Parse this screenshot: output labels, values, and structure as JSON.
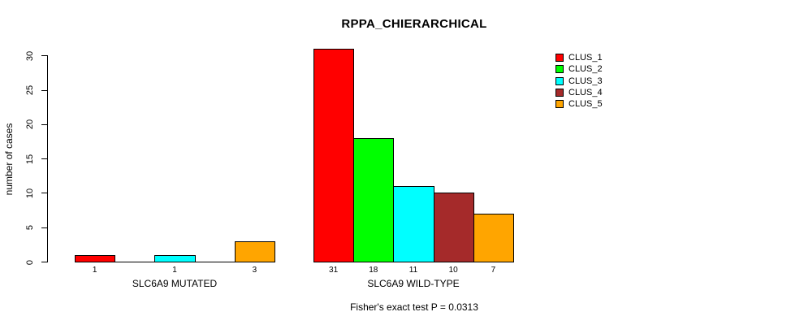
{
  "title": "RPPA_CHIERARCHICAL",
  "footer": "Fisher's exact test P = 0.0313",
  "chart_data": {
    "type": "bar",
    "title": "RPPA_CHIERARCHICAL",
    "xlabel": "",
    "ylabel": "number of cases",
    "ylim": [
      0,
      31
    ],
    "yticks": [
      0,
      5,
      10,
      15,
      20,
      25,
      30
    ],
    "grid": false,
    "legend_position": "top-right",
    "categories": [
      "SLC6A9 MUTATED",
      "SLC6A9 WILD-TYPE"
    ],
    "series": [
      {
        "name": "CLUS_1",
        "color": "#FF0000",
        "values": [
          1,
          31
        ]
      },
      {
        "name": "CLUS_2",
        "color": "#00FF00",
        "values": [
          0,
          18
        ]
      },
      {
        "name": "CLUS_3",
        "color": "#00FFFF",
        "values": [
          1,
          11
        ]
      },
      {
        "name": "CLUS_4",
        "color": "#A52A2A",
        "values": [
          0,
          10
        ]
      },
      {
        "name": "CLUS_5",
        "color": "#FFA500",
        "values": [
          3,
          7
        ]
      }
    ],
    "bar_value_labels_shown": true,
    "annotation": "Fisher's exact test P = 0.0313"
  }
}
